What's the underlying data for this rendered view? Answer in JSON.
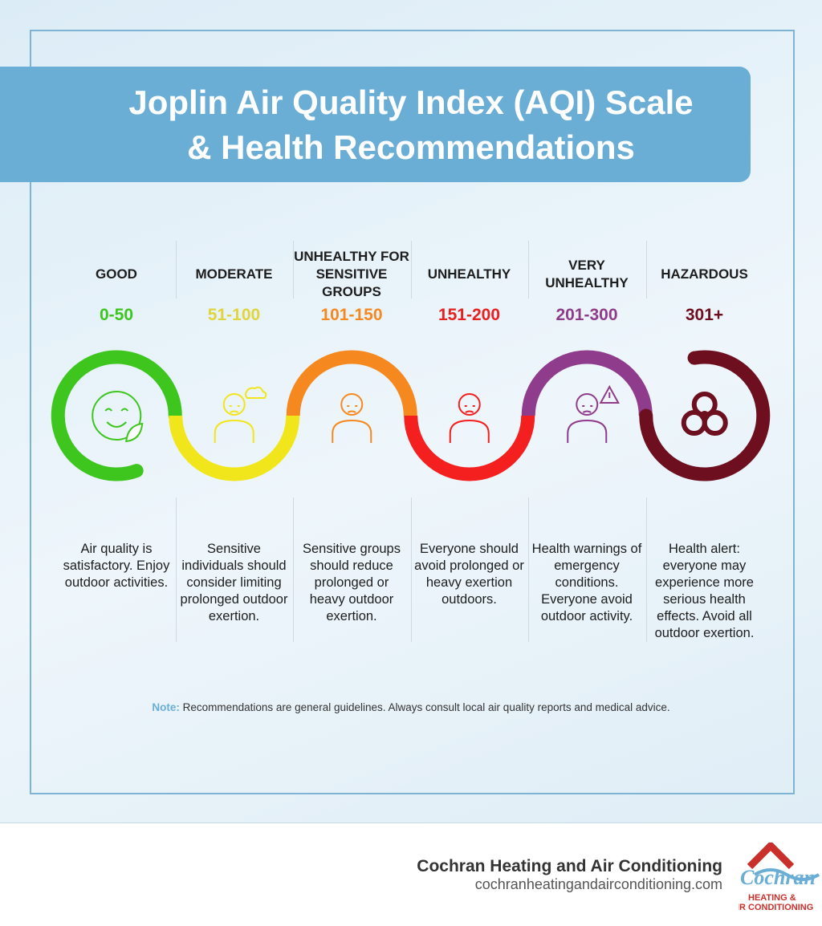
{
  "title": [
    "Joplin Air Quality Index (AQI) Scale",
    "& Health Recommendations"
  ],
  "levels": [
    {
      "name": "GOOD",
      "range": "0-50",
      "color": "#3ec61e",
      "range_color": "#3ec61e",
      "description": "Air quality is satisfactory. Enjoy outdoor activities."
    },
    {
      "name": "MODERATE",
      "range": "51-100",
      "color": "#f1e61b",
      "range_color": "#e0d53a",
      "description": "Sensitive individuals should consider limiting prolonged outdoor exertion."
    },
    {
      "name": "UNHEALTHY FOR SENSITIVE GROUPS",
      "range": "101-150",
      "color": "#f5891f",
      "range_color": "#f5891f",
      "description": "Sensitive groups should reduce prolonged or heavy outdoor exertion."
    },
    {
      "name": "UNHEALTHY",
      "range": "151-200",
      "color": "#f41f1f",
      "range_color": "#e8201f",
      "description": "Everyone should avoid prolonged or heavy exertion outdoors."
    },
    {
      "name": "VERY UNHEALTHY",
      "range": "201-300",
      "color": "#8f3c8c",
      "range_color": "#8f3c8c",
      "description": "Health warnings of emergency conditions. Everyone avoid outdoor activity."
    },
    {
      "name": "HAZARDOUS",
      "range": "301+",
      "color": "#6d0f1f",
      "range_color": "#6d0f1f",
      "description": "Health alert: everyone may experience more serious health effects. Avoid all outdoor exertion."
    }
  ],
  "note": {
    "label": "Note:",
    "text": "Recommendations are general guidelines. Always consult local air quality reports and medical advice."
  },
  "footer": {
    "company": "Cochran Heating and Air Conditioning",
    "url": "cochranheatingandairconditioning.com"
  },
  "logo": {
    "name": "Cochran",
    "line1": "HEATING &",
    "line2": "AIR CONDITIONING"
  }
}
